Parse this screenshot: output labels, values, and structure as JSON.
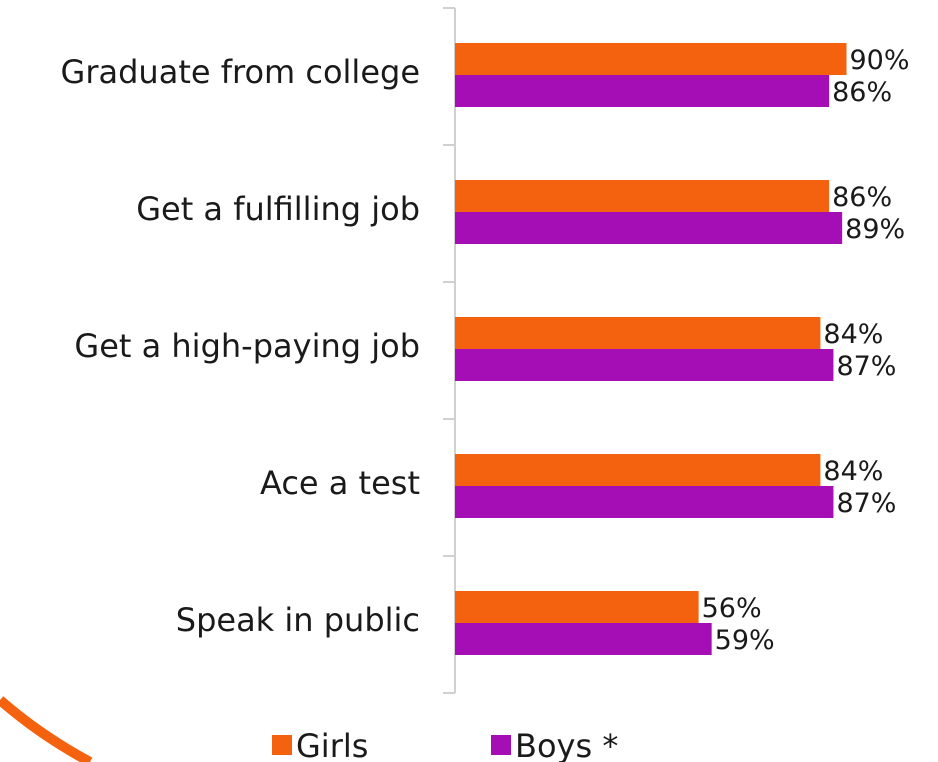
{
  "chart_data": {
    "type": "bar",
    "orientation": "horizontal",
    "categories": [
      "Graduate from college",
      "Get a fulfilling job",
      "Get a high-paying job",
      "Ace a test",
      "Speak in public"
    ],
    "series": [
      {
        "name": "Girls",
        "values": [
          90,
          86,
          84,
          84,
          56
        ],
        "labels": [
          "90%",
          "86%",
          "84%",
          "84%",
          "56%"
        ],
        "color": "#F5620F"
      },
      {
        "name": "Boys *",
        "values": [
          86,
          89,
          87,
          87,
          59
        ],
        "labels": [
          "86%",
          "89%",
          "87%",
          "87%",
          "59%"
        ],
        "color": "#A50DB5"
      }
    ],
    "xlim": [
      0,
      100
    ],
    "grid": false,
    "legend": "bottom"
  },
  "colors": {
    "girls": "#F5620F",
    "boys": "#A50DB5",
    "axis": "#d0d0d0",
    "decor_arc": "#F5620F"
  }
}
